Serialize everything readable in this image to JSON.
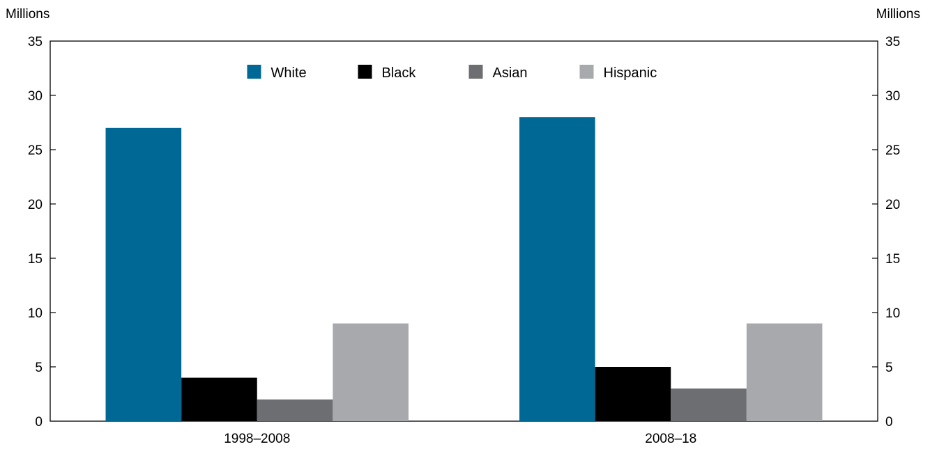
{
  "chart_data": {
    "type": "bar",
    "y_unit_left": "Millions",
    "y_unit_right": "Millions",
    "categories": [
      "1998–2008",
      "2008–18"
    ],
    "series": [
      {
        "name": "White",
        "color": "#006894",
        "values": [
          27,
          28
        ]
      },
      {
        "name": "Black",
        "color": "#000000",
        "values": [
          4,
          5
        ]
      },
      {
        "name": "Asian",
        "color": "#6d6e71",
        "values": [
          2,
          3
        ]
      },
      {
        "name": "Hispanic",
        "color": "#a7a9ac",
        "values": [
          9,
          9
        ]
      }
    ],
    "ylim": [
      0,
      35
    ],
    "yticks": [
      0,
      5,
      10,
      15,
      20,
      25,
      30,
      35
    ],
    "grid": false,
    "legend_position": "top-center"
  }
}
